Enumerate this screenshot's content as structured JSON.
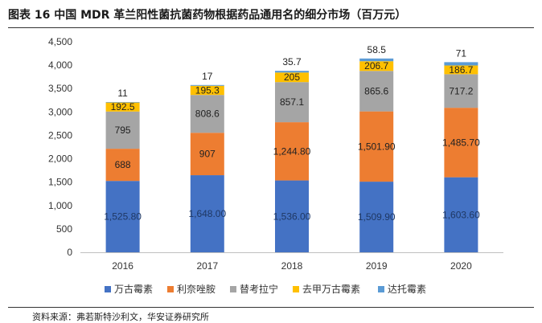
{
  "title": "图表 16 中国 MDR 革兰阳性菌抗菌药物根据药品通用名的细分市场（百万元）",
  "source": "资料来源：弗若斯特沙利文，华安证券研究所",
  "colors": {
    "万古霉素": "#4472C4",
    "利奈唑胺": "#ED7D31",
    "替考拉宁": "#A5A5A5",
    "去甲万古霉素": "#FFC000",
    "达托霉素": "#5B9BD5"
  },
  "chart_data": {
    "type": "bar",
    "stacked": true,
    "categories": [
      "2016",
      "2017",
      "2018",
      "2019",
      "2020"
    ],
    "series": [
      {
        "name": "万古霉素",
        "values": [
          1525.8,
          1648.0,
          1536.0,
          1509.9,
          1603.6
        ],
        "labels": [
          "1,525.80",
          "1,648.00",
          "1,536.00",
          "1,509.90",
          "1,603.60"
        ]
      },
      {
        "name": "利奈唑胺",
        "values": [
          688,
          907,
          1244.8,
          1501.9,
          1485.7
        ],
        "labels": [
          "688",
          "907",
          "1,244.80",
          "1,501.90",
          "1,485.70"
        ]
      },
      {
        "name": "替考拉宁",
        "values": [
          795,
          808.6,
          857.1,
          865.6,
          717.2
        ],
        "labels": [
          "795",
          "808.6",
          "857.1",
          "865.6",
          "717.2"
        ]
      },
      {
        "name": "去甲万古霉素",
        "values": [
          192.5,
          195.3,
          205,
          206.7,
          186.7
        ],
        "labels": [
          "192.5",
          "195.3",
          "205",
          "206.7",
          "186.7"
        ]
      },
      {
        "name": "达托霉素",
        "values": [
          11,
          17,
          35.7,
          58.5,
          71
        ],
        "labels": [
          "11",
          "17",
          "35.7",
          "58.5",
          "71"
        ]
      }
    ],
    "ylim": [
      0,
      4500
    ],
    "yticks": [
      "0",
      "500",
      "1,000",
      "1,500",
      "2,000",
      "2,500",
      "3,000",
      "3,500",
      "4,000",
      "4,500"
    ],
    "ytick_values": [
      0,
      500,
      1000,
      1500,
      2000,
      2500,
      3000,
      3500,
      4000,
      4500
    ],
    "legend_position": "bottom",
    "grid": false
  }
}
